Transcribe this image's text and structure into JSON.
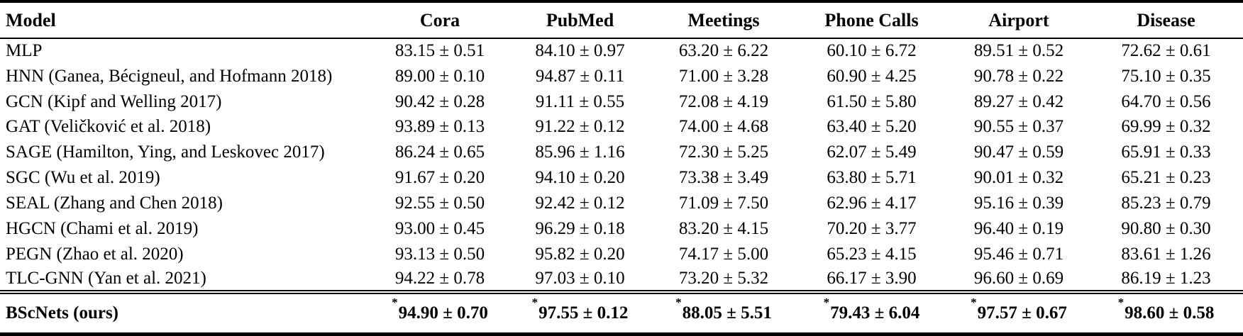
{
  "colors": {
    "background": "#ffffff",
    "text": "#000000",
    "rule": "#000000"
  },
  "table": {
    "columns": [
      "Model",
      "Cora",
      "PubMed",
      "Meetings",
      "Phone Calls",
      "Airport",
      "Disease"
    ],
    "rows": [
      {
        "model": "MLP",
        "values": [
          "83.15 ± 0.51",
          "84.10 ± 0.97",
          "63.20 ± 6.22",
          "60.10 ± 6.72",
          "89.51 ± 0.52",
          "72.62 ± 0.61"
        ]
      },
      {
        "model": "HNN (Ganea, Bécigneul, and Hofmann 2018)",
        "values": [
          "89.00 ± 0.10",
          "94.87 ± 0.11",
          "71.00 ± 3.28",
          "60.90 ± 4.25",
          "90.78 ± 0.22",
          "75.10 ± 0.35"
        ]
      },
      {
        "model": "GCN (Kipf and Welling 2017)",
        "values": [
          "90.42 ± 0.28",
          "91.11 ± 0.55",
          "72.08 ± 4.19",
          "61.50 ± 5.80",
          "89.27 ± 0.42",
          "64.70 ± 0.56"
        ]
      },
      {
        "model": "GAT (Veličković et al. 2018)",
        "values": [
          "93.89 ± 0.13",
          "91.22 ± 0.12",
          "74.00 ± 4.68",
          "63.40 ± 5.20",
          "90.55 ± 0.37",
          "69.99 ± 0.32"
        ]
      },
      {
        "model": "SAGE (Hamilton, Ying, and Leskovec 2017)",
        "values": [
          "86.24 ± 0.65",
          "85.96 ± 1.16",
          "72.30 ± 5.25",
          "62.07 ± 5.49",
          "90.47 ± 0.59",
          "65.91 ± 0.33"
        ]
      },
      {
        "model": "SGC (Wu et al. 2019)",
        "values": [
          "91.67 ± 0.20",
          "94.10 ± 0.20",
          "73.38 ± 3.49",
          "63.80 ± 5.71",
          "90.01 ± 0.32",
          "65.21 ± 0.23"
        ]
      },
      {
        "model": "SEAL (Zhang and Chen 2018)",
        "values": [
          "92.55 ± 0.50",
          "92.42 ± 0.12",
          "71.09 ± 7.50",
          "62.96 ± 4.17",
          "95.16 ± 0.39",
          "85.23 ± 0.79"
        ]
      },
      {
        "model": "HGCN (Chami et al. 2019)",
        "values": [
          "93.00 ± 0.45",
          "96.29 ± 0.18",
          "83.20 ± 4.15",
          "70.20 ± 3.77",
          "96.40 ± 0.19",
          "90.80 ± 0.30"
        ]
      },
      {
        "model": "PEGN (Zhao et al. 2020)",
        "values": [
          "93.13 ± 0.50",
          "95.82 ± 0.20",
          "74.17 ± 5.00",
          "65.23 ± 4.15",
          "95.46 ± 0.71",
          "83.61 ± 1.26"
        ]
      },
      {
        "model": "TLC-GNN (Yan et al. 2021)",
        "values": [
          "94.22 ± 0.78",
          "97.03 ± 0.10",
          "73.20 ± 5.32",
          "66.17 ± 3.90",
          "96.60 ± 0.69",
          "86.19 ± 1.23"
        ]
      }
    ],
    "highlight_row": {
      "model": "BScNets (ours)",
      "star": "*",
      "values": [
        "94.90 ± 0.70",
        "97.55 ± 0.12",
        "88.05 ± 5.51",
        "79.43 ± 6.04",
        "97.57 ± 0.67",
        "98.60 ± 0.58"
      ]
    }
  }
}
